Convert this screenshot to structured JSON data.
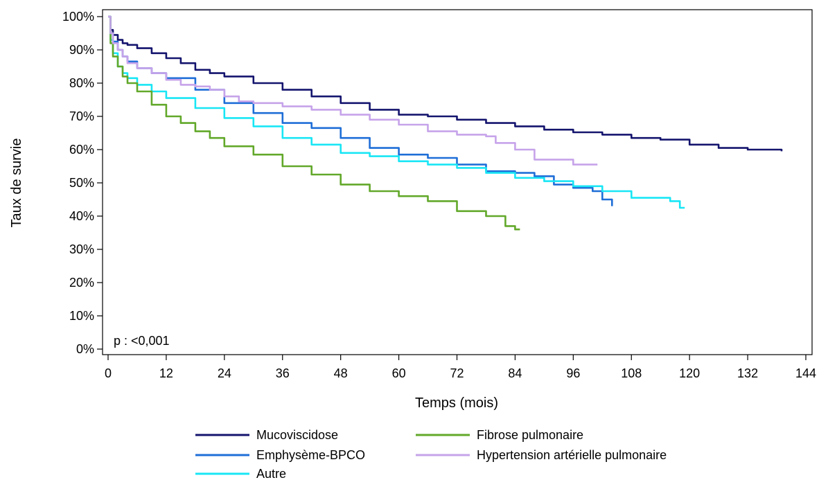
{
  "chart_data": {
    "type": "line",
    "title": "",
    "xlabel": "Temps (mois)",
    "ylabel": "Taux de survie",
    "xlim": [
      0,
      144
    ],
    "ylim": [
      0,
      100
    ],
    "x_ticks": [
      0,
      12,
      24,
      36,
      48,
      60,
      72,
      84,
      96,
      108,
      120,
      132,
      144
    ],
    "y_ticks": [
      0,
      10,
      20,
      30,
      40,
      50,
      60,
      70,
      80,
      90,
      100
    ],
    "x_tick_labels": [
      "0",
      "12",
      "24",
      "36",
      "48",
      "60",
      "72",
      "84",
      "96",
      "108",
      "120",
      "132",
      "144"
    ],
    "y_tick_labels": [
      "0%",
      "10%",
      "20%",
      "30%",
      "40%",
      "50%",
      "60%",
      "70%",
      "80%",
      "90%",
      "100%"
    ],
    "grid": false,
    "legend_position": "bottom",
    "annotation": "p : <0,001",
    "step": true,
    "series": [
      {
        "name": "Mucoviscidose",
        "color": "#14146e",
        "points": [
          [
            0,
            100
          ],
          [
            0.5,
            96
          ],
          [
            1,
            94.5
          ],
          [
            2,
            93
          ],
          [
            3,
            92
          ],
          [
            4,
            91.5
          ],
          [
            6,
            90.5
          ],
          [
            9,
            89
          ],
          [
            12,
            87.5
          ],
          [
            15,
            86
          ],
          [
            18,
            84
          ],
          [
            21,
            83
          ],
          [
            24,
            82
          ],
          [
            30,
            80
          ],
          [
            36,
            78
          ],
          [
            42,
            76
          ],
          [
            48,
            74
          ],
          [
            54,
            72
          ],
          [
            60,
            70.5
          ],
          [
            66,
            70
          ],
          [
            72,
            69
          ],
          [
            78,
            68
          ],
          [
            84,
            67
          ],
          [
            90,
            66
          ],
          [
            96,
            65.2
          ],
          [
            102,
            64.5
          ],
          [
            108,
            63.5
          ],
          [
            114,
            63
          ],
          [
            120,
            61.5
          ],
          [
            126,
            60.5
          ],
          [
            132,
            60
          ],
          [
            136,
            60
          ],
          [
            139,
            59.5
          ]
        ]
      },
      {
        "name": "Emphysème-BPCO",
        "color": "#1e6ed7",
        "points": [
          [
            0,
            100
          ],
          [
            0.5,
            95
          ],
          [
            1,
            92.5
          ],
          [
            2,
            90
          ],
          [
            3,
            88
          ],
          [
            4,
            86.5
          ],
          [
            6,
            84.5
          ],
          [
            9,
            83
          ],
          [
            12,
            81.5
          ],
          [
            18,
            78
          ],
          [
            24,
            74
          ],
          [
            30,
            71
          ],
          [
            36,
            68
          ],
          [
            42,
            66.5
          ],
          [
            48,
            63.5
          ],
          [
            54,
            60.5
          ],
          [
            60,
            58.5
          ],
          [
            66,
            57.5
          ],
          [
            72,
            55.5
          ],
          [
            78,
            53.5
          ],
          [
            84,
            53
          ],
          [
            88,
            52
          ],
          [
            92,
            49.5
          ],
          [
            96,
            48.5
          ],
          [
            100,
            47.5
          ],
          [
            102,
            45
          ],
          [
            104,
            43
          ]
        ]
      },
      {
        "name": "Autre",
        "color": "#18e6f5",
        "points": [
          [
            0,
            100
          ],
          [
            0.5,
            93
          ],
          [
            1,
            89
          ],
          [
            2,
            85
          ],
          [
            3,
            83
          ],
          [
            4,
            81.5
          ],
          [
            6,
            79.5
          ],
          [
            9,
            77.5
          ],
          [
            12,
            75.5
          ],
          [
            18,
            72.5
          ],
          [
            24,
            69.5
          ],
          [
            30,
            67
          ],
          [
            36,
            63.5
          ],
          [
            42,
            61.5
          ],
          [
            48,
            59
          ],
          [
            54,
            58
          ],
          [
            60,
            56.5
          ],
          [
            66,
            55.5
          ],
          [
            72,
            54.5
          ],
          [
            78,
            53
          ],
          [
            84,
            51.5
          ],
          [
            90,
            50.5
          ],
          [
            96,
            49
          ],
          [
            102,
            47.5
          ],
          [
            108,
            45.5
          ],
          [
            114,
            45.5
          ],
          [
            116,
            44.5
          ],
          [
            118,
            42.5
          ],
          [
            119,
            42.5
          ]
        ]
      },
      {
        "name": "Fibrose pulmonaire",
        "color": "#62a82a",
        "points": [
          [
            0,
            100
          ],
          [
            0.5,
            92
          ],
          [
            1,
            88
          ],
          [
            2,
            85
          ],
          [
            3,
            82
          ],
          [
            4,
            80
          ],
          [
            6,
            77.5
          ],
          [
            9,
            73.5
          ],
          [
            12,
            70
          ],
          [
            15,
            68
          ],
          [
            18,
            65.5
          ],
          [
            21,
            63.5
          ],
          [
            24,
            61
          ],
          [
            30,
            58.5
          ],
          [
            36,
            55
          ],
          [
            42,
            52.5
          ],
          [
            48,
            49.5
          ],
          [
            54,
            47.5
          ],
          [
            60,
            46
          ],
          [
            66,
            44.5
          ],
          [
            72,
            41.5
          ],
          [
            78,
            40
          ],
          [
            82,
            37
          ],
          [
            84,
            36
          ],
          [
            85,
            36
          ]
        ]
      },
      {
        "name": "Hypertension artérielle pulmonaire",
        "color": "#c6a3ea",
        "points": [
          [
            0,
            100
          ],
          [
            0.5,
            95
          ],
          [
            1,
            92
          ],
          [
            2,
            90
          ],
          [
            3,
            88
          ],
          [
            4,
            86
          ],
          [
            6,
            84.5
          ],
          [
            9,
            83
          ],
          [
            12,
            81
          ],
          [
            15,
            79.5
          ],
          [
            18,
            79
          ],
          [
            21,
            78
          ],
          [
            24,
            76
          ],
          [
            27,
            74.5
          ],
          [
            30,
            74
          ],
          [
            36,
            73
          ],
          [
            42,
            72
          ],
          [
            48,
            70.5
          ],
          [
            54,
            69
          ],
          [
            60,
            67.5
          ],
          [
            66,
            65.5
          ],
          [
            72,
            64.5
          ],
          [
            78,
            64
          ],
          [
            80,
            62
          ],
          [
            84,
            60
          ],
          [
            88,
            57
          ],
          [
            93,
            57
          ],
          [
            96,
            55.5
          ],
          [
            100,
            55.5
          ],
          [
            101,
            55.5
          ]
        ]
      }
    ]
  }
}
